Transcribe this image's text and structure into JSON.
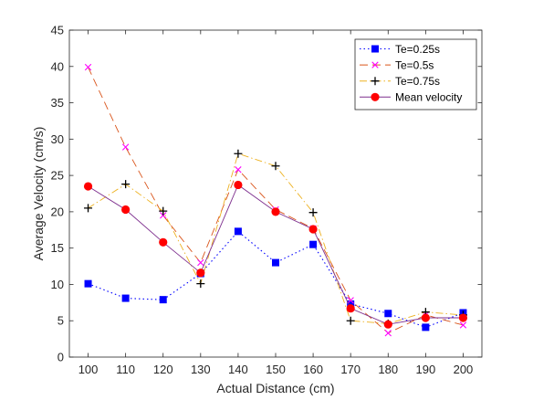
{
  "chart_data": {
    "type": "line",
    "title": "",
    "xlabel": "Actual Distance (cm)",
    "ylabel": "Average Velocity (cm/s)",
    "x": [
      100,
      110,
      120,
      130,
      140,
      150,
      160,
      170,
      180,
      190,
      200
    ],
    "xlim": [
      95,
      205
    ],
    "ylim": [
      0,
      45
    ],
    "xticks": [
      "100",
      "110",
      "120",
      "130",
      "140",
      "150",
      "160",
      "170",
      "180",
      "190",
      "200"
    ],
    "yticks": [
      "0",
      "5",
      "10",
      "15",
      "20",
      "25",
      "30",
      "35",
      "40",
      "45"
    ],
    "grid": false,
    "legend_position": "top-right",
    "series": [
      {
        "name": "Te=0.25s",
        "color": "#0000ff",
        "line_style": "dotted",
        "marker": "square",
        "values": [
          10.1,
          8.1,
          7.9,
          11.5,
          17.3,
          13.0,
          15.5,
          7.3,
          6.0,
          4.1,
          6.1
        ]
      },
      {
        "name": "Te=0.5s",
        "color": "#ff00ff",
        "line_color": "#d95319",
        "line_style": "dashed",
        "marker": "x",
        "values": [
          39.9,
          28.9,
          19.5,
          13.0,
          25.8,
          20.3,
          17.7,
          7.8,
          3.3,
          5.8,
          4.4
        ]
      },
      {
        "name": "Te=0.75s",
        "color": "#000000",
        "line_color": "#edb120",
        "line_style": "dashdot",
        "marker": "plus",
        "values": [
          20.5,
          23.8,
          20.1,
          10.1,
          28.0,
          26.3,
          19.9,
          5.0,
          4.6,
          6.2,
          5.8
        ]
      },
      {
        "name": "Mean velocity",
        "color": "#ff0000",
        "line_color": "#7e2f8e",
        "line_style": "solid",
        "marker": "circle",
        "values": [
          23.5,
          20.3,
          15.8,
          11.6,
          23.7,
          20.0,
          17.6,
          6.7,
          4.5,
          5.4,
          5.4
        ]
      }
    ]
  }
}
